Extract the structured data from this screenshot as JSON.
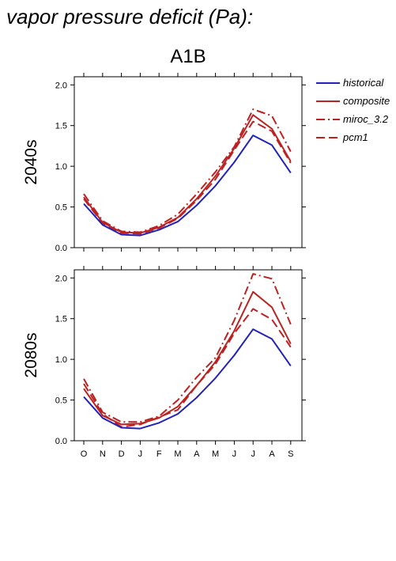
{
  "figure_title": "vapor pressure deficit (Pa):",
  "colors": {
    "historical": "#2222bb",
    "future": "#bb2222",
    "axis": "#000000"
  },
  "chart_data": [
    {
      "type": "line",
      "title": "A1B",
      "ylabel": "2040s",
      "xlabel": "",
      "categories": [
        "O",
        "N",
        "D",
        "J",
        "F",
        "M",
        "A",
        "M",
        "J",
        "J",
        "A",
        "S"
      ],
      "ylim": [
        0,
        2.1
      ],
      "yticks": [
        0.0,
        0.5,
        1.0,
        1.5,
        2.0
      ],
      "ytick_labels": [
        "0.0",
        "0.5",
        "1.0",
        "1.5",
        "2.0"
      ],
      "series": [
        {
          "name": "historical",
          "style": "solid",
          "values": [
            0.54,
            0.28,
            0.16,
            0.15,
            0.22,
            0.32,
            0.52,
            0.76,
            1.05,
            1.38,
            1.26,
            0.92
          ]
        },
        {
          "name": "composite",
          "style": "solid",
          "values": [
            0.62,
            0.31,
            0.19,
            0.18,
            0.25,
            0.37,
            0.6,
            0.88,
            1.22,
            1.63,
            1.46,
            1.06
          ]
        },
        {
          "name": "miroc_3.2",
          "style": "dashdot",
          "values": [
            0.66,
            0.33,
            0.2,
            0.19,
            0.27,
            0.41,
            0.66,
            0.93,
            1.24,
            1.7,
            1.62,
            1.18
          ]
        },
        {
          "name": "pcm1",
          "style": "dashed",
          "values": [
            0.6,
            0.3,
            0.18,
            0.17,
            0.24,
            0.36,
            0.58,
            0.84,
            1.2,
            1.55,
            1.43,
            1.04
          ]
        }
      ]
    },
    {
      "type": "line",
      "title": "",
      "ylabel": "2080s",
      "xlabel": "",
      "categories": [
        "O",
        "N",
        "D",
        "J",
        "F",
        "M",
        "A",
        "M",
        "J",
        "J",
        "A",
        "S"
      ],
      "ylim": [
        0,
        2.1
      ],
      "yticks": [
        0.0,
        0.5,
        1.0,
        1.5,
        2.0
      ],
      "ytick_labels": [
        "0.0",
        "0.5",
        "1.0",
        "1.5",
        "2.0"
      ],
      "series": [
        {
          "name": "historical",
          "style": "solid",
          "values": [
            0.54,
            0.28,
            0.16,
            0.15,
            0.22,
            0.33,
            0.53,
            0.77,
            1.05,
            1.37,
            1.25,
            0.92
          ]
        },
        {
          "name": "composite",
          "style": "solid",
          "values": [
            0.64,
            0.31,
            0.2,
            0.21,
            0.28,
            0.42,
            0.68,
            0.97,
            1.35,
            1.83,
            1.64,
            1.19
          ]
        },
        {
          "name": "miroc_3.2",
          "style": "dashdot",
          "values": [
            0.76,
            0.35,
            0.23,
            0.23,
            0.3,
            0.5,
            0.78,
            1.02,
            1.48,
            2.05,
            1.99,
            1.43
          ]
        },
        {
          "name": "pcm1",
          "style": "dashed",
          "values": [
            0.7,
            0.33,
            0.17,
            0.2,
            0.29,
            0.38,
            0.68,
            0.94,
            1.32,
            1.62,
            1.49,
            1.15
          ]
        }
      ]
    }
  ],
  "legend": [
    {
      "label": "historical",
      "style": "solid",
      "color_key": "historical"
    },
    {
      "label": "composite",
      "style": "solid",
      "color_key": "future"
    },
    {
      "label": "miroc_3.2",
      "style": "dashdot",
      "color_key": "future"
    },
    {
      "label": "pcm1",
      "style": "dashed",
      "color_key": "future"
    }
  ]
}
